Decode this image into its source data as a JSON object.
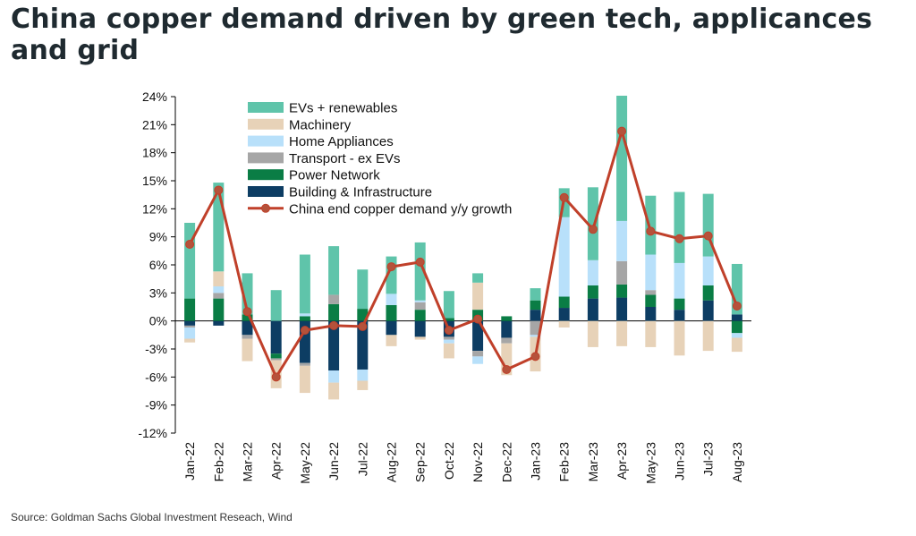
{
  "title": "China copper demand driven by green tech, applicances and grid",
  "source": "Source: Goldman Sachs Global Investment Reseach, Wind",
  "chart_data": {
    "type": "bar",
    "stacked": true,
    "categories": [
      "Jan-22",
      "Feb-22",
      "Mar-22",
      "Apr-22",
      "May-22",
      "Jun-22",
      "Jul-22",
      "Aug-22",
      "Sep-22",
      "Oct-22",
      "Nov-22",
      "Dec-22",
      "Jan-23",
      "Feb-23",
      "Mar-23",
      "Apr-23",
      "May-23",
      "Jun-23",
      "Jul-23",
      "Aug-23"
    ],
    "ylim": [
      -12,
      24
    ],
    "yticks": [
      -12,
      -9,
      -6,
      -3,
      0,
      3,
      6,
      9,
      12,
      15,
      18,
      21,
      24
    ],
    "ytick_labels": [
      "-12%",
      "-9%",
      "-6%",
      "-3%",
      "0%",
      "3%",
      "6%",
      "9%",
      "12%",
      "15%",
      "18%",
      "21%",
      "24%"
    ],
    "legend_position": "top-left",
    "series": [
      {
        "name": "Building & Infrastructure",
        "color": "#0d3d63",
        "values": [
          -0.5,
          -0.5,
          -1.5,
          -3.5,
          -4.5,
          -5.3,
          -5.2,
          -1.5,
          -1.7,
          -1.7,
          -3.2,
          -1.8,
          1.2,
          1.4,
          2.4,
          2.5,
          1.5,
          1.2,
          2.2,
          0.7
        ]
      },
      {
        "name": "Power Network",
        "color": "#0a7d45",
        "values": [
          2.4,
          2.4,
          0.7,
          -0.5,
          0.5,
          1.8,
          1.3,
          1.7,
          1.2,
          0.3,
          1.2,
          0.5,
          1.0,
          1.2,
          1.4,
          1.4,
          1.3,
          1.2,
          1.6,
          -1.3
        ]
      },
      {
        "name": "Transport - ex EVs",
        "color": "#a6a6a6",
        "values": [
          -0.2,
          0.6,
          -0.4,
          -0.2,
          -0.3,
          1.0,
          0.0,
          0.0,
          0.8,
          -0.3,
          -0.6,
          -0.6,
          -1.5,
          0.0,
          0.0,
          2.5,
          0.5,
          0.0,
          0.0,
          0.0
        ]
      },
      {
        "name": "Home Appliances",
        "color": "#b8e0fa",
        "values": [
          -1.2,
          0.7,
          0.0,
          0.0,
          0.3,
          -1.3,
          -1.2,
          1.2,
          0.2,
          -0.4,
          -0.8,
          0.0,
          -0.2,
          8.5,
          2.7,
          4.3,
          3.8,
          3.8,
          3.1,
          -0.5
        ]
      },
      {
        "name": "Machinery",
        "color": "#e7d2b8",
        "values": [
          -0.4,
          1.6,
          -2.4,
          -3.0,
          -2.9,
          -1.8,
          -1.0,
          -1.2,
          -0.3,
          -1.6,
          2.9,
          -3.4,
          -3.7,
          -0.7,
          -2.8,
          -2.7,
          -2.8,
          -3.7,
          -3.2,
          -1.5
        ]
      },
      {
        "name": "EVs + renewables",
        "color": "#5fc4aa",
        "values": [
          8.1,
          9.5,
          4.4,
          3.3,
          6.3,
          5.2,
          4.2,
          4.0,
          6.2,
          2.9,
          1.0,
          0.0,
          1.3,
          3.1,
          7.8,
          13.4,
          6.3,
          7.6,
          6.7,
          5.4
        ]
      }
    ],
    "line": {
      "name": "China end copper demand y/y growth",
      "color": "#c0402a",
      "values": [
        8.2,
        14.0,
        1.0,
        -6.0,
        -1.0,
        -0.5,
        -0.6,
        5.8,
        6.3,
        -1.0,
        0.2,
        -5.2,
        -3.8,
        13.2,
        9.8,
        20.3,
        9.6,
        8.8,
        9.1,
        1.6
      ]
    },
    "legend_order": [
      "EVs + renewables",
      "Machinery",
      "Home Appliances",
      "Transport - ex EVs",
      "Power Network",
      "Building & Infrastructure",
      "China end copper demand y/y growth"
    ]
  }
}
